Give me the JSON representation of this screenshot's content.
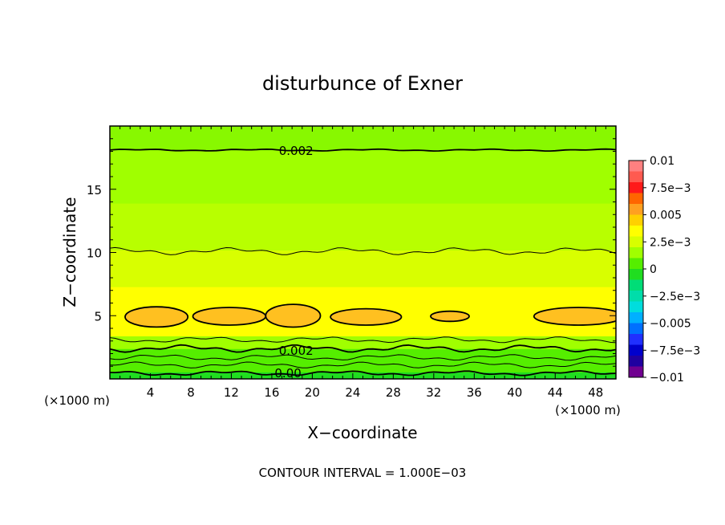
{
  "chart_data": {
    "type": "heatmap",
    "title": "disturbunce of Exner",
    "xlabel": "X−coordinate",
    "ylabel": "Z−coordinate",
    "x_unit": "(×1000 m)",
    "y_unit": "(×1000 m)",
    "xlim": [
      0,
      50
    ],
    "ylim": [
      0,
      20
    ],
    "x_ticks": [
      "4",
      "8",
      "12",
      "16",
      "20",
      "24",
      "28",
      "32",
      "36",
      "40",
      "44",
      "48"
    ],
    "y_ticks": [
      "5",
      "10",
      "15"
    ],
    "footer": "CONTOUR INTERVAL = 1.000E−03",
    "contour_labels": [
      {
        "text": "0.002",
        "x": 18.4,
        "z": 18.1
      },
      {
        "text": "0.002",
        "x": 18.4,
        "z": 2.3
      },
      {
        "text": "0.00",
        "x": 17.6,
        "z": 0.5
      }
    ],
    "colorbar": {
      "range": [
        -0.01,
        0.01
      ],
      "tick_labels": [
        "0.01",
        "7.5e−3",
        "0.005",
        "2.5e−3",
        "0",
        "−2.5e−3",
        "−0.005",
        "−7.5e−3",
        "−0.01"
      ],
      "colors": [
        "#ff8080",
        "#ff5a50",
        "#ff1a1a",
        "#ff6600",
        "#ffa020",
        "#ffd000",
        "#ffff00",
        "#d8ff00",
        "#a0ff00",
        "#55ee00",
        "#20dd20",
        "#00dd77",
        "#00ddaa",
        "#00dddd",
        "#00b0ff",
        "#0070ff",
        "#2030ff",
        "#0000cc",
        "#2000a0",
        "#700090"
      ]
    },
    "bands": [
      {
        "z0": 0.0,
        "z1": 0.55,
        "color": "#20dd20"
      },
      {
        "z0": 0.55,
        "z1": 1.4,
        "color": "#55ee00"
      },
      {
        "z0": 1.4,
        "z1": 2.4,
        "color": "#55ee00"
      },
      {
        "z0": 2.4,
        "z1": 3.4,
        "color": "#a0ff00"
      },
      {
        "z0": 3.4,
        "z1": 7.3,
        "color": "#ffff00"
      },
      {
        "z0": 7.3,
        "z1": 10.2,
        "color": "#d8ff00"
      },
      {
        "z0": 10.2,
        "z1": 13.9,
        "color": "#b8ff00"
      },
      {
        "z0": 13.9,
        "z1": 18.1,
        "color": "#a0ff00"
      },
      {
        "z0": 18.1,
        "z1": 20.0,
        "color": "#88f800"
      }
    ],
    "contour_lines": [
      {
        "z": 18.1,
        "amp": 0.05,
        "width": 1.8
      },
      {
        "z": 10.1,
        "amp": 0.18,
        "width": 1.0
      },
      {
        "z": 3.1,
        "amp": 0.15,
        "width": 1.0
      },
      {
        "z": 2.4,
        "amp": 0.18,
        "width": 1.8
      },
      {
        "z": 1.7,
        "amp": 0.15,
        "width": 1.0
      },
      {
        "z": 1.1,
        "amp": 0.15,
        "width": 1.0
      },
      {
        "z": 0.45,
        "amp": 0.12,
        "width": 1.8
      }
    ],
    "blobs": [
      {
        "x": 4.6,
        "z": 4.9,
        "rx": 3.1,
        "rz": 0.8
      },
      {
        "x": 11.8,
        "z": 4.95,
        "rx": 3.6,
        "rz": 0.7
      },
      {
        "x": 18.1,
        "z": 5.0,
        "rx": 2.7,
        "rz": 0.9
      },
      {
        "x": 25.3,
        "z": 4.9,
        "rx": 3.5,
        "rz": 0.65
      },
      {
        "x": 33.6,
        "z": 4.95,
        "rx": 1.9,
        "rz": 0.4
      },
      {
        "x": 46.3,
        "z": 4.95,
        "rx": 4.4,
        "rz": 0.7
      }
    ],
    "blob_color": "#ffc020"
  }
}
